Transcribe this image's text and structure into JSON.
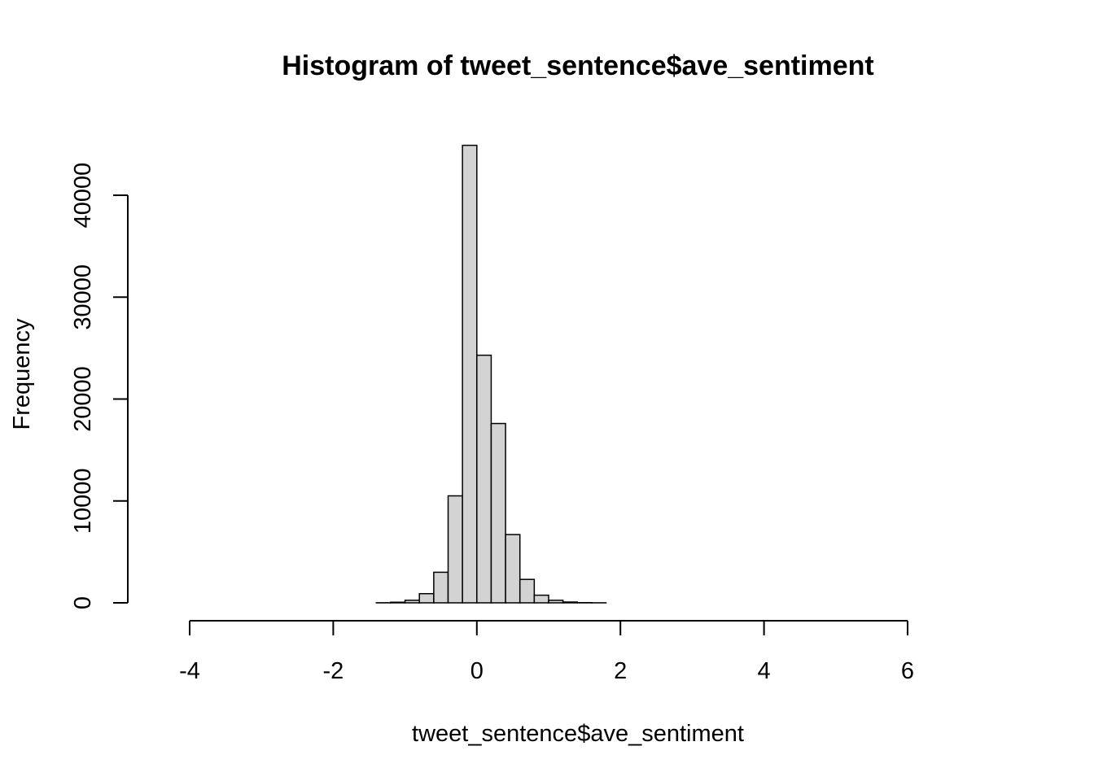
{
  "chart_data": {
    "type": "bar",
    "title": "Histogram of tweet_sentence$ave_sentiment",
    "xlabel": "tweet_sentence$ave_sentiment",
    "ylabel": "Frequency",
    "bar_color": "#d3d3d3",
    "bin_width": 0.2,
    "xlim": [
      -4.4,
      7.2
    ],
    "ylim": [
      0,
      45000
    ],
    "x_ticks": [
      -4,
      -2,
      0,
      2,
      4,
      6
    ],
    "y_ticks": [
      0,
      10000,
      20000,
      30000,
      40000
    ],
    "x_tick_labels": [
      "-4",
      "-2",
      "0",
      "2",
      "4",
      "6"
    ],
    "y_tick_labels": [
      "0",
      "10000",
      "20000",
      "30000",
      "40000"
    ],
    "bins": [
      {
        "start": -4.4,
        "end": -4.2,
        "count": 0
      },
      {
        "start": -4.2,
        "end": -4.0,
        "count": 0
      },
      {
        "start": -4.0,
        "end": -3.8,
        "count": 0
      },
      {
        "start": -3.8,
        "end": -3.6,
        "count": 0
      },
      {
        "start": -3.6,
        "end": -3.4,
        "count": 0
      },
      {
        "start": -3.4,
        "end": -3.2,
        "count": 0
      },
      {
        "start": -3.2,
        "end": -3.0,
        "count": 0
      },
      {
        "start": -3.0,
        "end": -2.8,
        "count": 0
      },
      {
        "start": -2.8,
        "end": -2.6,
        "count": 0
      },
      {
        "start": -2.6,
        "end": -2.4,
        "count": 0
      },
      {
        "start": -2.4,
        "end": -2.2,
        "count": 0
      },
      {
        "start": -2.2,
        "end": -2.0,
        "count": 0
      },
      {
        "start": -2.0,
        "end": -1.8,
        "count": 0
      },
      {
        "start": -1.8,
        "end": -1.6,
        "count": 0
      },
      {
        "start": -1.6,
        "end": -1.4,
        "count": 0
      },
      {
        "start": -1.4,
        "end": -1.2,
        "count": 10
      },
      {
        "start": -1.2,
        "end": -1.0,
        "count": 60
      },
      {
        "start": -1.0,
        "end": -0.8,
        "count": 250
      },
      {
        "start": -0.8,
        "end": -0.6,
        "count": 900
      },
      {
        "start": -0.6,
        "end": -0.4,
        "count": 3000
      },
      {
        "start": -0.4,
        "end": -0.2,
        "count": 10500
      },
      {
        "start": -0.2,
        "end": 0.0,
        "count": 44900
      },
      {
        "start": 0.0,
        "end": 0.2,
        "count": 24300
      },
      {
        "start": 0.2,
        "end": 0.4,
        "count": 17600
      },
      {
        "start": 0.4,
        "end": 0.6,
        "count": 6700
      },
      {
        "start": 0.6,
        "end": 0.8,
        "count": 2300
      },
      {
        "start": 0.8,
        "end": 1.0,
        "count": 750
      },
      {
        "start": 1.0,
        "end": 1.2,
        "count": 250
      },
      {
        "start": 1.2,
        "end": 1.4,
        "count": 80
      },
      {
        "start": 1.4,
        "end": 1.6,
        "count": 20
      },
      {
        "start": 1.6,
        "end": 1.8,
        "count": 5
      },
      {
        "start": 1.8,
        "end": 2.0,
        "count": 0
      },
      {
        "start": 2.0,
        "end": 2.2,
        "count": 0
      },
      {
        "start": 2.2,
        "end": 2.4,
        "count": 0
      },
      {
        "start": 2.4,
        "end": 2.6,
        "count": 0
      },
      {
        "start": 2.6,
        "end": 2.8,
        "count": 0
      },
      {
        "start": 2.8,
        "end": 3.0,
        "count": 0
      },
      {
        "start": 3.0,
        "end": 3.2,
        "count": 0
      },
      {
        "start": 3.2,
        "end": 3.4,
        "count": 0
      },
      {
        "start": 3.4,
        "end": 3.6,
        "count": 0
      },
      {
        "start": 3.6,
        "end": 3.8,
        "count": 0
      },
      {
        "start": 3.8,
        "end": 4.0,
        "count": 0
      },
      {
        "start": 4.0,
        "end": 4.2,
        "count": 0
      },
      {
        "start": 4.2,
        "end": 4.4,
        "count": 0
      },
      {
        "start": 4.4,
        "end": 4.6,
        "count": 0
      },
      {
        "start": 4.6,
        "end": 4.8,
        "count": 0
      },
      {
        "start": 4.8,
        "end": 5.0,
        "count": 0
      },
      {
        "start": 5.0,
        "end": 5.2,
        "count": 0
      },
      {
        "start": 5.2,
        "end": 5.4,
        "count": 0
      },
      {
        "start": 5.4,
        "end": 5.6,
        "count": 0
      },
      {
        "start": 5.6,
        "end": 5.8,
        "count": 0
      },
      {
        "start": 5.8,
        "end": 6.0,
        "count": 0
      },
      {
        "start": 6.0,
        "end": 6.2,
        "count": 0
      },
      {
        "start": 6.2,
        "end": 6.4,
        "count": 0
      },
      {
        "start": 6.4,
        "end": 6.6,
        "count": 0
      },
      {
        "start": 6.6,
        "end": 6.8,
        "count": 0
      },
      {
        "start": 6.8,
        "end": 7.0,
        "count": 0
      },
      {
        "start": 7.0,
        "end": 7.2,
        "count": 0
      }
    ]
  }
}
